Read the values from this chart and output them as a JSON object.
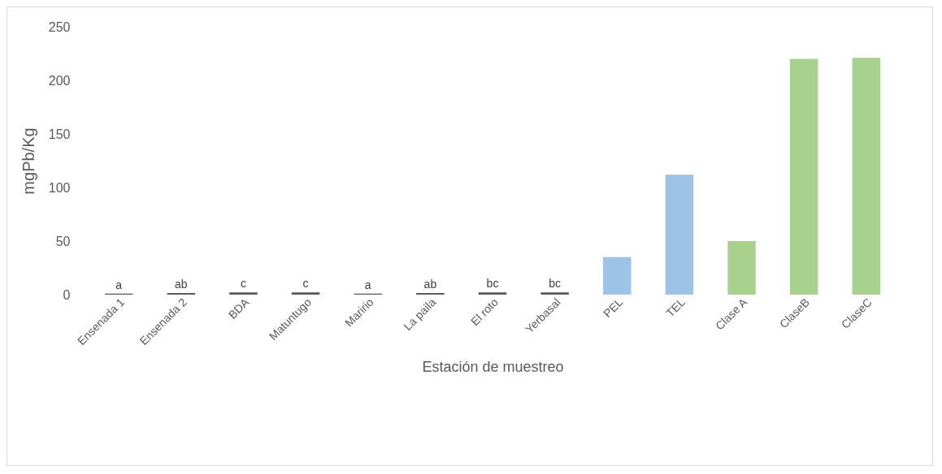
{
  "chart_data": {
    "type": "bar",
    "xlabel": "Estación de muestreo",
    "ylabel": "mgPb/Kg",
    "categories": [
      "Ensenada 1",
      "Ensenada 2",
      "BDA",
      "Matuntugo",
      "Maririo",
      "La paila",
      "El roto",
      "Yerbasal",
      "PEL",
      "TEL",
      "Clase A",
      "ClaseB",
      "ClaseC"
    ],
    "values": [
      1,
      1.5,
      2,
      2,
      1,
      1.5,
      2,
      2,
      35,
      112,
      50,
      220,
      221
    ],
    "colors": [
      "#595959",
      "#595959",
      "#595959",
      "#595959",
      "#595959",
      "#595959",
      "#595959",
      "#595959",
      "#9dc3e6",
      "#9dc3e6",
      "#a9d18e",
      "#a9d18e",
      "#a9d18e"
    ],
    "value_labels": [
      "a",
      "ab",
      "c",
      "c",
      "a",
      "ab",
      "bc",
      "bc",
      null,
      null,
      null,
      null,
      null
    ],
    "ylim": [
      0,
      250
    ],
    "yticks": [
      0,
      50,
      100,
      150,
      200,
      250
    ],
    "grid": false
  }
}
